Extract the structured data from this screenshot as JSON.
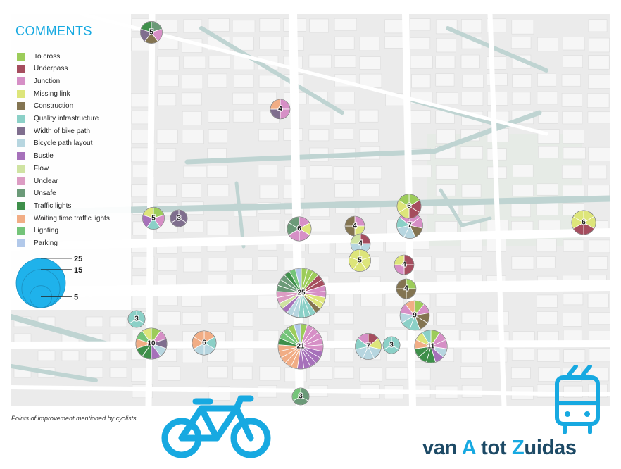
{
  "legend": {
    "title": "COMMENTS",
    "categories": [
      {
        "label": "To cross",
        "color": "#9ccc5a"
      },
      {
        "label": "Underpass",
        "color": "#a54d5e"
      },
      {
        "label": "Junction",
        "color": "#d68fc6"
      },
      {
        "label": "Missing link",
        "color": "#dde57a"
      },
      {
        "label": "Construction",
        "color": "#837451"
      },
      {
        "label": "Quality infrastructure",
        "color": "#8bd0c7"
      },
      {
        "label": "Width of bike path",
        "color": "#7f6e8e"
      },
      {
        "label": "Bicycle path layout",
        "color": "#b7d6e0"
      },
      {
        "label": "Bustle",
        "color": "#a671ba"
      },
      {
        "label": "Flow",
        "color": "#cfe3a2"
      },
      {
        "label": "Unclear",
        "color": "#dc9cc3"
      },
      {
        "label": "Unsafe",
        "color": "#6b9a78"
      },
      {
        "label": "Traffic lights",
        "color": "#3e8f4a"
      },
      {
        "label": "Waiting time traffic lights",
        "color": "#f1ad85"
      },
      {
        "label": "Lighting",
        "color": "#74c479"
      },
      {
        "label": "Parking",
        "color": "#b2c9ea"
      }
    ],
    "size_scale": [
      25,
      15,
      5
    ],
    "size_color": "#1fb2eb"
  },
  "points": [
    {
      "label": "5",
      "count": 5,
      "slices": [
        "Unsafe",
        "Junction",
        "Construction",
        "Width of bike path",
        "Traffic lights"
      ]
    },
    {
      "label": "4",
      "count": 4,
      "slices": [
        "Junction",
        "Junction",
        "Width of bike path",
        "Waiting time traffic lights"
      ]
    },
    {
      "label": "6",
      "count": 6,
      "slices": [
        "Junction",
        "Junction",
        "Waiting time traffic lights",
        "Bicycle path layout",
        "Bicycle path layout",
        "Junction"
      ]
    },
    {
      "label": "7",
      "count": 7,
      "slices": [
        "Junction",
        "Junction",
        "Construction",
        "Bicycle path layout",
        "Bicycle path layout",
        "Quality infrastructure",
        "Junction"
      ]
    },
    {
      "label": "6",
      "count": 6,
      "slices": [
        "To cross",
        "Underpass",
        "Underpass",
        "Missing link",
        "Missing link",
        "To cross"
      ]
    },
    {
      "label": "5",
      "count": 5,
      "slices": [
        "To cross",
        "Junction",
        "Quality infrastructure",
        "Bustle",
        "Missing link"
      ]
    },
    {
      "label": "3",
      "count": 3,
      "slices": [
        "Width of bike path",
        "Width of bike path",
        "Width of bike path"
      ]
    },
    {
      "label": "6",
      "count": 6,
      "slices": [
        "Junction",
        "Missing link",
        "Junction",
        "Junction",
        "Unsafe",
        "Unsafe"
      ]
    },
    {
      "label": "4",
      "count": 4,
      "slices": [
        "Junction",
        "Missing link",
        "Construction",
        "Construction"
      ]
    },
    {
      "label": "4",
      "count": 4,
      "slices": [
        "Underpass",
        "Bicycle path layout",
        "Bicycle path layout",
        "Flow"
      ]
    },
    {
      "label": "5",
      "count": 5,
      "slices": [
        "Missing link",
        "Missing link",
        "Missing link",
        "Missing link",
        "Missing link"
      ]
    },
    {
      "label": "4",
      "count": 4,
      "slices": [
        "Underpass",
        "Underpass",
        "Junction",
        "Missing link"
      ]
    },
    {
      "label": "4",
      "count": 4,
      "slices": [
        "To cross",
        "Construction",
        "Construction",
        "Construction"
      ]
    },
    {
      "label": "25",
      "count": 25,
      "slices": [
        "To cross",
        "To cross",
        "To cross",
        "Underpass",
        "Underpass",
        "Junction",
        "Junction",
        "Missing link",
        "Missing link",
        "Construction",
        "Quality infrastructure",
        "Quality infrastructure",
        "Quality infrastructure",
        "Bicycle path layout",
        "Bicycle path layout",
        "Bustle",
        "Flow",
        "Unclear",
        "Unclear",
        "Unsafe",
        "Unsafe",
        "Unsafe",
        "Traffic lights",
        "Lighting",
        "Parking"
      ]
    },
    {
      "label": "9",
      "count": 9,
      "slices": [
        "To cross",
        "Junction",
        "Construction",
        "Construction",
        "Quality infrastructure",
        "Quality infrastructure",
        "Bicycle path layout",
        "Junction",
        "Waiting time traffic lights"
      ]
    },
    {
      "label": "3",
      "count": 3,
      "slices": [
        "Quality infrastructure",
        "Quality infrastructure",
        "Quality infrastructure"
      ]
    },
    {
      "label": "10",
      "count": 10,
      "slices": [
        "To cross",
        "Junction",
        "Width of bike path",
        "Bicycle path layout",
        "Bustle",
        "Traffic lights",
        "Traffic lights",
        "Waiting time traffic lights",
        "Lighting",
        "Missing link"
      ]
    },
    {
      "label": "6",
      "count": 6,
      "slices": [
        "Waiting time traffic lights",
        "Quality infrastructure",
        "Bicycle path layout",
        "Bicycle path layout",
        "Waiting time traffic lights",
        "Waiting time traffic lights"
      ]
    },
    {
      "label": "21",
      "count": 21,
      "slices": [
        "To cross",
        "Junction",
        "Junction",
        "Junction",
        "Junction",
        "Junction",
        "Bustle",
        "Bustle",
        "Bustle",
        "Bustle",
        "Bustle",
        "Waiting time traffic lights",
        "Waiting time traffic lights",
        "Waiting time traffic lights",
        "Waiting time traffic lights",
        "Waiting time traffic lights",
        "Traffic lights",
        "Lighting",
        "Lighting",
        "To cross",
        "Parking"
      ]
    },
    {
      "label": "7",
      "count": 7,
      "slices": [
        "Underpass",
        "Missing link",
        "Bicycle path layout",
        "Bicycle path layout",
        "Bicycle path layout",
        "Quality infrastructure",
        "Junction"
      ]
    },
    {
      "label": "3",
      "count": 3,
      "slices": [
        "Quality infrastructure",
        "Quality infrastructure",
        "Quality infrastructure"
      ]
    },
    {
      "label": "11",
      "count": 11,
      "slices": [
        "To cross",
        "Junction",
        "Junction",
        "Bicycle path layout",
        "Bustle",
        "Traffic lights",
        "Traffic lights",
        "Traffic lights",
        "Waiting time traffic lights",
        "Missing link",
        "Quality infrastructure"
      ]
    },
    {
      "label": "3",
      "count": 3,
      "slices": [
        "Unsafe",
        "Unsafe",
        "Lighting"
      ]
    },
    {
      "label": "6",
      "count": 6,
      "slices": [
        "Missing link",
        "Missing link",
        "Underpass",
        "Underpass",
        "Missing link",
        "Missing link"
      ]
    }
  ],
  "caption": "Points of improvement mentioned by cyclists",
  "brand": {
    "part1": "van ",
    "part2": "A",
    "part3": " tot ",
    "part4": "Z",
    "part5": "uidas"
  }
}
